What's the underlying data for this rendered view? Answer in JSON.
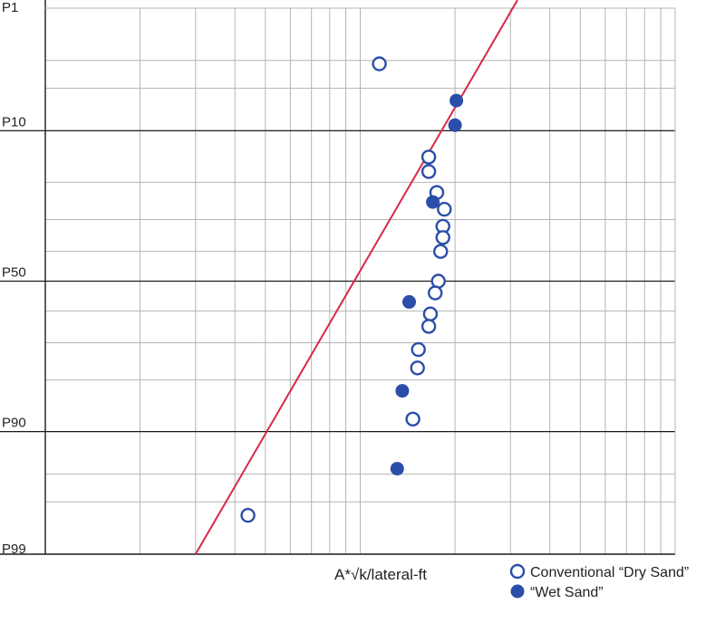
{
  "chart_data": {
    "type": "scatter",
    "xlabel": "A*√k/lateral-ft",
    "x_scale": "log",
    "x_ticks": [],
    "y_scale": "probability",
    "y_tick_labels": [
      "P1",
      "P10",
      "P50",
      "P90",
      "P99"
    ],
    "y_ticks": [
      1,
      10,
      50,
      90,
      99
    ],
    "ylim": [
      1,
      99
    ],
    "grid": true,
    "legend_position": "bottom-right",
    "series": [
      {
        "name": "Conventional “Dry Sand”",
        "marker": "open-circle",
        "color": "#2b4ea8",
        "points": [
          [
            11.5,
            3.2
          ],
          [
            16.5,
            14.5
          ],
          [
            16.5,
            17.5
          ],
          [
            17.5,
            22.5
          ],
          [
            18.5,
            27
          ],
          [
            18.3,
            32
          ],
          [
            18.3,
            35.5
          ],
          [
            18.0,
            40
          ],
          [
            17.7,
            50
          ],
          [
            17.3,
            54
          ],
          [
            16.7,
            61
          ],
          [
            16.5,
            65
          ],
          [
            15.3,
            72
          ],
          [
            15.2,
            77
          ],
          [
            14.7,
            88
          ],
          [
            4.4,
            97.7
          ]
        ]
      },
      {
        "name": "“Wet Sand”",
        "marker": "filled-circle",
        "color": "#2b4ea8",
        "points": [
          [
            20.2,
            6.2
          ],
          [
            20.0,
            9.2
          ],
          [
            17.0,
            25
          ],
          [
            14.3,
            57
          ],
          [
            13.6,
            82.5
          ],
          [
            13.1,
            94.5
          ]
        ]
      }
    ],
    "fit_line": {
      "color": "#d8284a",
      "points": [
        [
          30.5,
          1
        ],
        [
          3.0,
          99
        ]
      ]
    }
  }
}
